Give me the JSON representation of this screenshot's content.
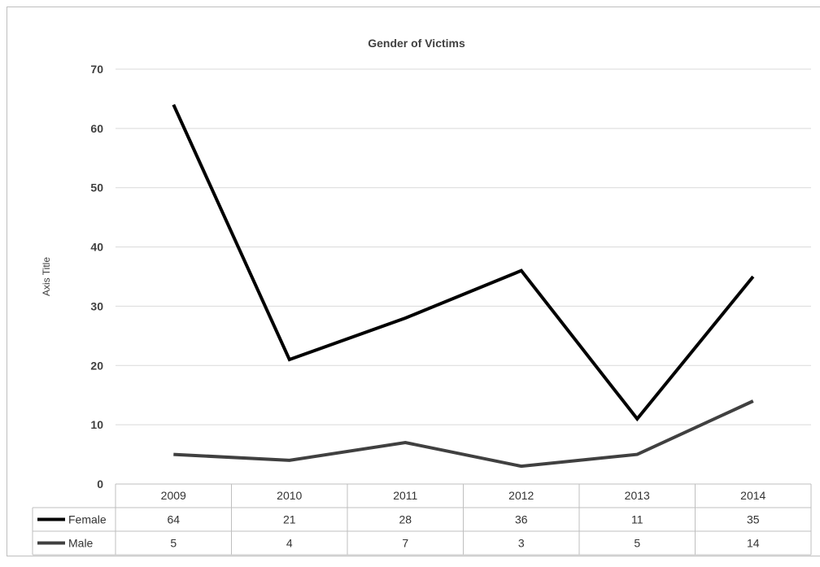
{
  "chart_data": {
    "type": "line",
    "title": "Gender of Victims",
    "ylabel": "Axis Title",
    "xlabel": "",
    "categories": [
      "2009",
      "2010",
      "2011",
      "2012",
      "2013",
      "2014"
    ],
    "series": [
      {
        "name": "Female",
        "values": [
          64,
          21,
          28,
          36,
          11,
          35
        ],
        "color": "#000000"
      },
      {
        "name": "Male",
        "values": [
          5,
          4,
          7,
          3,
          5,
          14
        ],
        "color": "#404040"
      }
    ],
    "ylim": [
      0,
      70
    ],
    "yticks": [
      0,
      10,
      20,
      30,
      40,
      50,
      60,
      70
    ],
    "grid": true,
    "legend": "data-table"
  }
}
